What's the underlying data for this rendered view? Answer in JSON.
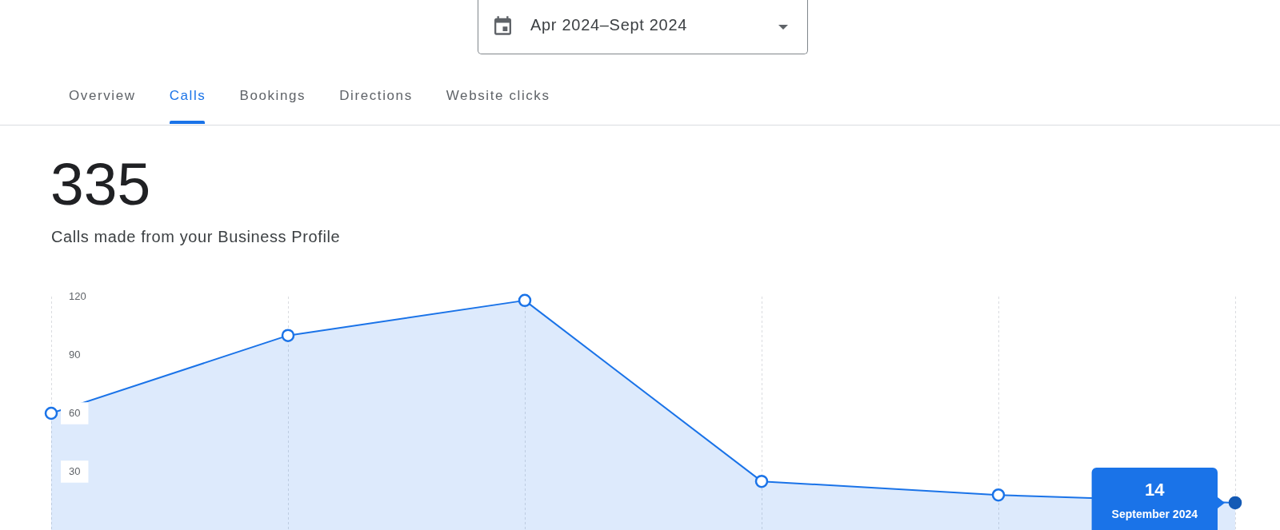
{
  "chart_data": {
    "type": "area",
    "title": "335",
    "subtitle": "Calls made from your Business Profile",
    "annotations": [
      "Apr 2024–Sept 2024",
      "Overview",
      "Calls",
      "Bookings",
      "Directions",
      "Website clicks",
      {
        "text": "14",
        "y": 14
      },
      {
        "text": "September 2024",
        "y": 14
      }
    ],
    "categories": [
      null,
      null,
      null,
      null,
      null,
      null
    ],
    "values": [
      60,
      100,
      118,
      25,
      18,
      14
    ],
    "color": "#1a73e8",
    "ylim": [
      0,
      120
    ],
    "yticks": [
      30,
      60,
      90,
      120
    ],
    "grid": "x",
    "tick_labels": "y",
    "marker": "circle"
  }
}
